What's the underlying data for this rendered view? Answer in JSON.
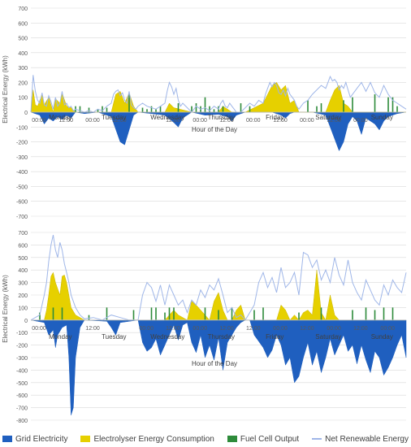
{
  "colors": {
    "grid": "#1f5fbf",
    "electrolyser": "#e6d000",
    "fuel_cell": "#2e8b3a",
    "net_renewable": "#9fb6e8",
    "gridline": "#d9d9d9",
    "text": "#595959"
  },
  "legend": {
    "grid_label": "Grid Electricity",
    "electrolyser_label": "Electrolyser Energy Consumption",
    "fuel_cell_label": "Fuel Cell Output",
    "net_label": "Net Renewable Energy"
  },
  "chart_data": [
    {
      "type": "area",
      "ylabel": "Electrical Energy (kWh)",
      "xlabel": "Hour of the Day",
      "ylim": [
        -700,
        700
      ],
      "yticks": [
        -700,
        -600,
        -500,
        -400,
        -300,
        -200,
        -100,
        0,
        100,
        200,
        300,
        400,
        500,
        600,
        700
      ],
      "xlim": [
        0,
        168
      ],
      "time_tick_labels": [
        "00:00",
        "12:00",
        "00:00",
        "12:00",
        "12:00",
        "00:00",
        "12:00",
        "00:00",
        "12:00",
        "00:00",
        "12:00",
        "00:00"
      ],
      "day_labels": [
        "Monday",
        "Tuesday",
        "Wednesday",
        "Thursday",
        "Friday",
        "Saturday",
        "Sunday"
      ],
      "grid": true,
      "legend_position": "bottom",
      "series": [
        {
          "name": "Grid Electricity",
          "x": [
            0,
            4,
            6,
            8,
            10,
            12,
            14,
            16,
            18,
            20,
            24,
            30,
            36,
            40,
            42,
            44,
            46,
            48,
            54,
            60,
            64,
            66,
            68,
            72,
            78,
            84,
            88,
            90,
            92,
            96,
            102,
            108,
            112,
            114,
            116,
            118,
            120,
            126,
            132,
            136,
            138,
            140,
            142,
            144,
            146,
            148,
            150,
            154,
            156,
            158,
            160,
            164,
            168
          ],
          "values": [
            0,
            -20,
            -80,
            -40,
            -60,
            -30,
            -50,
            -20,
            -40,
            0,
            -10,
            0,
            -30,
            -200,
            -220,
            -120,
            -20,
            0,
            -10,
            -20,
            -70,
            -100,
            -40,
            0,
            -20,
            -15,
            -30,
            -60,
            -20,
            0,
            0,
            0,
            -20,
            -40,
            -10,
            0,
            0,
            0,
            -20,
            -180,
            -260,
            -200,
            -80,
            -30,
            -60,
            -150,
            -40,
            -80,
            -120,
            -60,
            -30,
            -10,
            0
          ]
        },
        {
          "name": "Electrolyser Energy Consumption",
          "x": [
            0,
            1,
            2,
            3,
            5,
            6,
            8,
            10,
            11,
            13,
            14,
            16,
            18,
            20,
            24,
            36,
            38,
            40,
            42,
            44,
            46,
            48,
            60,
            62,
            64,
            72,
            84,
            86,
            88,
            90,
            96,
            104,
            106,
            108,
            110,
            112,
            114,
            116,
            118,
            120,
            132,
            134,
            136,
            138,
            140,
            142,
            144,
            156,
            168
          ],
          "values": [
            0,
            150,
            50,
            40,
            120,
            50,
            100,
            0,
            90,
            60,
            130,
            40,
            30,
            0,
            0,
            0,
            120,
            140,
            60,
            130,
            40,
            0,
            0,
            60,
            30,
            0,
            0,
            40,
            20,
            0,
            0,
            60,
            120,
            180,
            200,
            150,
            180,
            60,
            80,
            0,
            0,
            80,
            150,
            180,
            60,
            40,
            0,
            0,
            0
          ]
        },
        {
          "name": "Fuel Cell Output",
          "x": [
            0,
            12,
            20,
            22,
            26,
            30,
            32,
            34,
            44,
            50,
            52,
            54,
            56,
            58,
            66,
            72,
            74,
            76,
            78,
            80,
            82,
            84,
            86,
            94,
            98,
            124,
            128,
            130,
            140,
            144,
            154,
            160,
            162,
            164
          ],
          "values": [
            0,
            0,
            40,
            40,
            30,
            20,
            40,
            30,
            120,
            30,
            20,
            40,
            20,
            40,
            60,
            40,
            60,
            40,
            100,
            40,
            20,
            40,
            40,
            60,
            40,
            80,
            40,
            60,
            80,
            100,
            120,
            100,
            100,
            40
          ]
        },
        {
          "name": "Net Renewable Energy",
          "x": [
            0,
            1,
            2,
            3,
            4,
            5,
            6,
            7,
            8,
            9,
            10,
            11,
            12,
            13,
            14,
            15,
            16,
            17,
            18,
            19,
            20,
            22,
            24,
            26,
            28,
            30,
            32,
            34,
            36,
            37,
            38,
            39,
            40,
            41,
            42,
            43,
            44,
            45,
            46,
            47,
            48,
            50,
            52,
            54,
            56,
            58,
            60,
            61,
            62,
            63,
            64,
            65,
            66,
            67,
            68,
            70,
            72,
            74,
            76,
            78,
            80,
            82,
            84,
            85,
            86,
            87,
            88,
            89,
            90,
            91,
            92,
            94,
            96,
            98,
            100,
            102,
            104,
            105,
            106,
            107,
            108,
            109,
            110,
            111,
            112,
            113,
            114,
            115,
            116,
            117,
            118,
            119,
            120,
            122,
            124,
            126,
            128,
            130,
            132,
            133,
            134,
            135,
            136,
            137,
            138,
            139,
            140,
            141,
            142,
            143,
            144,
            146,
            148,
            150,
            152,
            154,
            156,
            158,
            160,
            162,
            164,
            166,
            168
          ],
          "values": [
            0,
            250,
            140,
            80,
            60,
            130,
            50,
            40,
            110,
            70,
            20,
            100,
            40,
            60,
            140,
            50,
            60,
            30,
            40,
            10,
            20,
            10,
            0,
            10,
            0,
            20,
            10,
            40,
            60,
            120,
            140,
            150,
            110,
            130,
            80,
            60,
            140,
            50,
            30,
            20,
            40,
            60,
            40,
            30,
            20,
            40,
            60,
            140,
            200,
            170,
            120,
            160,
            80,
            40,
            60,
            30,
            0,
            40,
            20,
            30,
            10,
            40,
            20,
            60,
            80,
            40,
            30,
            60,
            40,
            20,
            0,
            0,
            30,
            60,
            40,
            80,
            60,
            120,
            160,
            200,
            170,
            200,
            180,
            130,
            120,
            150,
            110,
            160,
            120,
            100,
            80,
            40,
            20,
            60,
            80,
            120,
            150,
            180,
            160,
            200,
            240,
            210,
            220,
            200,
            150,
            180,
            160,
            200,
            150,
            100,
            120,
            160,
            200,
            140,
            200,
            130,
            100,
            180,
            120,
            80,
            60,
            40,
            20
          ]
        }
      ]
    },
    {
      "type": "area",
      "ylabel": "Electrical Energy (kWh)",
      "xlabel": "Hour of the Day",
      "ylim": [
        -800,
        700
      ],
      "yticks": [
        -800,
        -700,
        -600,
        -500,
        -400,
        -300,
        -200,
        -100,
        0,
        100,
        200,
        300,
        400,
        500,
        600,
        700
      ],
      "xlim": [
        0,
        168
      ],
      "time_tick_labels": [
        "00:00",
        "12:00",
        "00:00",
        "12:00",
        "00:00",
        "12:00",
        "12:00",
        "00:00",
        "12:00",
        "00:00",
        "12:00",
        "00:00"
      ],
      "day_labels": [
        "Monday",
        "Tuesday",
        "Wednesday",
        "Thursday",
        "Friday",
        "Saturday",
        "Sunday"
      ],
      "grid": true,
      "legend_position": "bottom",
      "series": [
        {
          "name": "Grid Electricity",
          "x": [
            0,
            6,
            8,
            10,
            11,
            12,
            14,
            16,
            17,
            18,
            19,
            20,
            22,
            24,
            34,
            36,
            38,
            40,
            48,
            50,
            52,
            54,
            56,
            58,
            60,
            62,
            64,
            66,
            68,
            70,
            72,
            74,
            76,
            78,
            80,
            82,
            84,
            86,
            88,
            90,
            92,
            94,
            96,
            98,
            100,
            104,
            106,
            108,
            110,
            112,
            114,
            116,
            118,
            120,
            122,
            124,
            126,
            128,
            130,
            132,
            134,
            136,
            138,
            140,
            142,
            144,
            146,
            148,
            150,
            152,
            154,
            156,
            158,
            160,
            162,
            164,
            166,
            168
          ],
          "values": [
            0,
            -20,
            -120,
            -80,
            -220,
            -120,
            -60,
            -40,
            -300,
            -760,
            -700,
            -300,
            -60,
            0,
            -10,
            -60,
            -120,
            -20,
            0,
            -180,
            -250,
            -220,
            -150,
            -280,
            -200,
            -120,
            -40,
            -160,
            -40,
            -20,
            -180,
            -260,
            -120,
            -300,
            -200,
            -320,
            -140,
            -400,
            -180,
            -120,
            -60,
            -20,
            0,
            0,
            -120,
            -220,
            -300,
            -240,
            -120,
            -200,
            -360,
            -300,
            -500,
            -450,
            -300,
            -180,
            -360,
            -250,
            -420,
            -300,
            -150,
            -280,
            -200,
            -120,
            -250,
            -200,
            -350,
            -200,
            -320,
            -420,
            -250,
            -300,
            -440,
            -380,
            -300,
            -200,
            -120,
            -300
          ]
        },
        {
          "name": "Electrolyser Energy Consumption",
          "x": [
            0,
            6,
            7,
            8,
            9,
            10,
            11,
            12,
            13,
            14,
            15,
            16,
            18,
            20,
            22,
            23,
            24,
            36,
            48,
            60,
            62,
            64,
            66,
            68,
            70,
            72,
            74,
            76,
            78,
            80,
            82,
            84,
            86,
            88,
            90,
            92,
            94,
            96,
            110,
            112,
            114,
            116,
            118,
            120,
            122,
            124,
            126,
            128,
            130,
            132,
            134,
            136,
            138,
            140,
            168
          ],
          "values": [
            0,
            0,
            80,
            200,
            350,
            380,
            300,
            250,
            200,
            350,
            360,
            300,
            100,
            40,
            20,
            10,
            0,
            0,
            0,
            0,
            40,
            80,
            40,
            20,
            0,
            150,
            120,
            80,
            40,
            0,
            150,
            220,
            80,
            0,
            0,
            80,
            120,
            0,
            0,
            120,
            80,
            0,
            40,
            0,
            60,
            80,
            40,
            400,
            60,
            0,
            200,
            40,
            0,
            0,
            0
          ]
        },
        {
          "name": "Fuel Cell Output",
          "x": [
            0,
            4,
            10,
            14,
            26,
            34,
            46,
            54,
            56,
            60,
            62,
            64,
            78,
            84,
            90,
            100,
            104,
            120,
            130,
            144,
            150,
            154,
            158,
            162
          ],
          "values": [
            0,
            60,
            100,
            100,
            40,
            100,
            80,
            100,
            100,
            60,
            100,
            100,
            100,
            80,
            100,
            80,
            100,
            60,
            100,
            80,
            100,
            80,
            100,
            100
          ]
        },
        {
          "name": "Net Renewable Energy",
          "x": [
            0,
            2,
            4,
            6,
            7,
            8,
            9,
            10,
            11,
            12,
            13,
            14,
            15,
            16,
            17,
            18,
            20,
            22,
            24,
            28,
            32,
            36,
            40,
            44,
            48,
            50,
            52,
            54,
            56,
            58,
            60,
            62,
            64,
            66,
            68,
            70,
            72,
            74,
            76,
            78,
            80,
            82,
            84,
            86,
            88,
            90,
            92,
            94,
            96,
            98,
            100,
            102,
            104,
            106,
            108,
            110,
            112,
            114,
            116,
            118,
            120,
            122,
            124,
            126,
            128,
            130,
            132,
            134,
            136,
            138,
            140,
            142,
            144,
            146,
            148,
            150,
            152,
            154,
            156,
            158,
            160,
            162,
            164,
            166,
            168
          ],
          "values": [
            0,
            20,
            40,
            200,
            300,
            470,
            600,
            680,
            560,
            500,
            620,
            560,
            450,
            380,
            300,
            200,
            100,
            40,
            10,
            20,
            0,
            40,
            20,
            0,
            0,
            200,
            300,
            260,
            150,
            280,
            120,
            280,
            200,
            120,
            160,
            60,
            160,
            120,
            240,
            180,
            280,
            240,
            330,
            200,
            60,
            100,
            20,
            40,
            0,
            60,
            120,
            300,
            380,
            260,
            340,
            220,
            420,
            260,
            300,
            380,
            200,
            540,
            520,
            420,
            480,
            320,
            400,
            300,
            500,
            360,
            280,
            480,
            300,
            220,
            160,
            320,
            240,
            160,
            120,
            280,
            200,
            320,
            260,
            220,
            380
          ]
        }
      ]
    }
  ]
}
